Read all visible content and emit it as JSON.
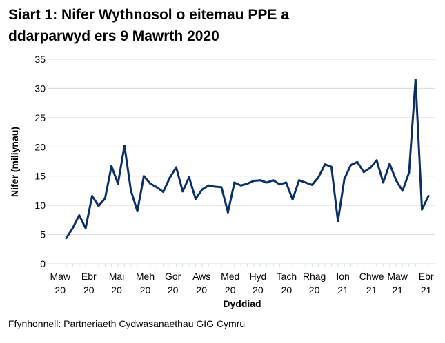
{
  "chart_data": {
    "type": "line",
    "title_line1": "Siart 1: Nifer Wythnosol o eitemau PPE a",
    "title_line2": "ddarparwyd ers 9 Mawrth 2020",
    "xlabel": "Dyddiad",
    "ylabel": "Nifer (miliynau)",
    "ylim": [
      0,
      35
    ],
    "yticks": [
      0,
      5,
      10,
      15,
      20,
      25,
      30,
      35
    ],
    "grid": true,
    "line_color": "#0b3068",
    "x_ticks": [
      {
        "date": "2020-03-01",
        "line1": "Maw",
        "line2": "20"
      },
      {
        "date": "2020-04-01",
        "line1": "Ebr",
        "line2": "20"
      },
      {
        "date": "2020-05-01",
        "line1": "Mai",
        "line2": "20"
      },
      {
        "date": "2020-06-01",
        "line1": "Meh",
        "line2": "20"
      },
      {
        "date": "2020-07-01",
        "line1": "Gor",
        "line2": "20"
      },
      {
        "date": "2020-08-01",
        "line1": "Aws",
        "line2": "20"
      },
      {
        "date": "2020-09-01",
        "line1": "Med",
        "line2": "20"
      },
      {
        "date": "2020-10-01",
        "line1": "Hyd",
        "line2": "20"
      },
      {
        "date": "2020-11-01",
        "line1": "Tach",
        "line2": "20"
      },
      {
        "date": "2020-12-01",
        "line1": "Rhag",
        "line2": "20"
      },
      {
        "date": "2021-01-01",
        "line1": "Ion",
        "line2": "21"
      },
      {
        "date": "2021-02-01",
        "line1": "Chwe",
        "line2": "21"
      },
      {
        "date": "2021-03-01",
        "line1": "Maw",
        "line2": "21"
      },
      {
        "date": "2021-04-01",
        "line1": "Ebr",
        "line2": "21"
      }
    ],
    "x": [
      "2020-03-09",
      "2020-03-16",
      "2020-03-23",
      "2020-03-30",
      "2020-04-06",
      "2020-04-13",
      "2020-04-20",
      "2020-04-27",
      "2020-05-04",
      "2020-05-11",
      "2020-05-18",
      "2020-05-25",
      "2020-06-01",
      "2020-06-08",
      "2020-06-15",
      "2020-06-22",
      "2020-06-29",
      "2020-07-06",
      "2020-07-13",
      "2020-07-20",
      "2020-07-27",
      "2020-08-03",
      "2020-08-10",
      "2020-08-17",
      "2020-08-24",
      "2020-08-31",
      "2020-09-07",
      "2020-09-14",
      "2020-09-21",
      "2020-09-28",
      "2020-10-05",
      "2020-10-12",
      "2020-10-19",
      "2020-10-26",
      "2020-11-02",
      "2020-11-09",
      "2020-11-16",
      "2020-11-23",
      "2020-11-30",
      "2020-12-07",
      "2020-12-14",
      "2020-12-21",
      "2020-12-28",
      "2021-01-04",
      "2021-01-11",
      "2021-01-18",
      "2021-01-25",
      "2021-02-01",
      "2021-02-08",
      "2021-02-15",
      "2021-02-22",
      "2021-03-01",
      "2021-03-08",
      "2021-03-15",
      "2021-03-22",
      "2021-03-29",
      "2021-04-05"
    ],
    "values": [
      4.4,
      6.1,
      8.3,
      6.1,
      11.6,
      9.9,
      11.2,
      16.7,
      13.7,
      20.2,
      12.5,
      9.0,
      15.0,
      13.7,
      13.1,
      12.3,
      14.7,
      16.5,
      12.4,
      14.8,
      11.1,
      12.7,
      13.4,
      13.2,
      13.1,
      8.8,
      13.9,
      13.4,
      13.7,
      14.2,
      14.3,
      13.9,
      14.3,
      13.6,
      13.9,
      11.0,
      14.3,
      13.9,
      13.5,
      14.8,
      17.0,
      16.6,
      7.3,
      14.5,
      16.9,
      17.4,
      15.7,
      16.4,
      17.7,
      13.9,
      17.1,
      14.3,
      12.5,
      15.6,
      31.5,
      9.3,
      11.6
    ]
  },
  "source": "Ffynhonnell: Partneriaeth Cydwasanaethau GIG Cymru"
}
